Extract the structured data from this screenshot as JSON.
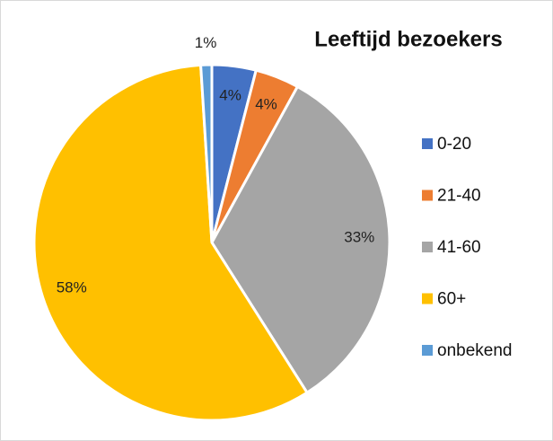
{
  "chart_data": {
    "type": "pie",
    "title": "Leeftijd bezoekers",
    "categories": [
      "0-20",
      "21-40",
      "41-60",
      "60+",
      "onbekend"
    ],
    "values": [
      4,
      4,
      33,
      58,
      1
    ],
    "value_labels": [
      "4%",
      "4%",
      "33%",
      "58%",
      "1%"
    ],
    "colors": [
      "#4472c4",
      "#ed7d31",
      "#a5a5a5",
      "#ffc000",
      "#5b9bd5"
    ],
    "legend": "right"
  }
}
